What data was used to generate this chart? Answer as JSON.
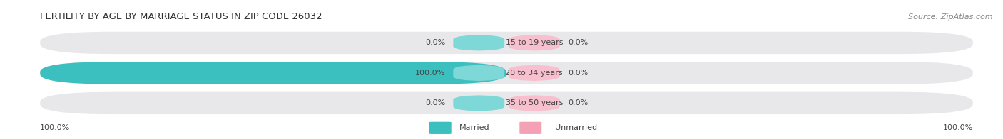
{
  "title": "FERTILITY BY AGE BY MARRIAGE STATUS IN ZIP CODE 26032",
  "source": "Source: ZipAtlas.com",
  "rows": [
    {
      "label": "15 to 19 years",
      "married_pct": 0.0,
      "unmarried_pct": 0.0
    },
    {
      "label": "20 to 34 years",
      "married_pct": 100.0,
      "unmarried_pct": 0.0
    },
    {
      "label": "35 to 50 years",
      "married_pct": 0.0,
      "unmarried_pct": 0.0
    }
  ],
  "bottom_left_label": "100.0%",
  "bottom_right_label": "100.0%",
  "married_color": "#3bbfbf",
  "unmarried_color": "#f4a0b5",
  "bar_bg_color": "#e8e8ea",
  "center_married_color": "#7fd8d8",
  "center_unmarried_color": "#f8bfce",
  "title_fontsize": 9.5,
  "source_fontsize": 8,
  "tick_fontsize": 8,
  "label_fontsize": 8,
  "legend_fontsize": 8,
  "background_color": "#ffffff"
}
